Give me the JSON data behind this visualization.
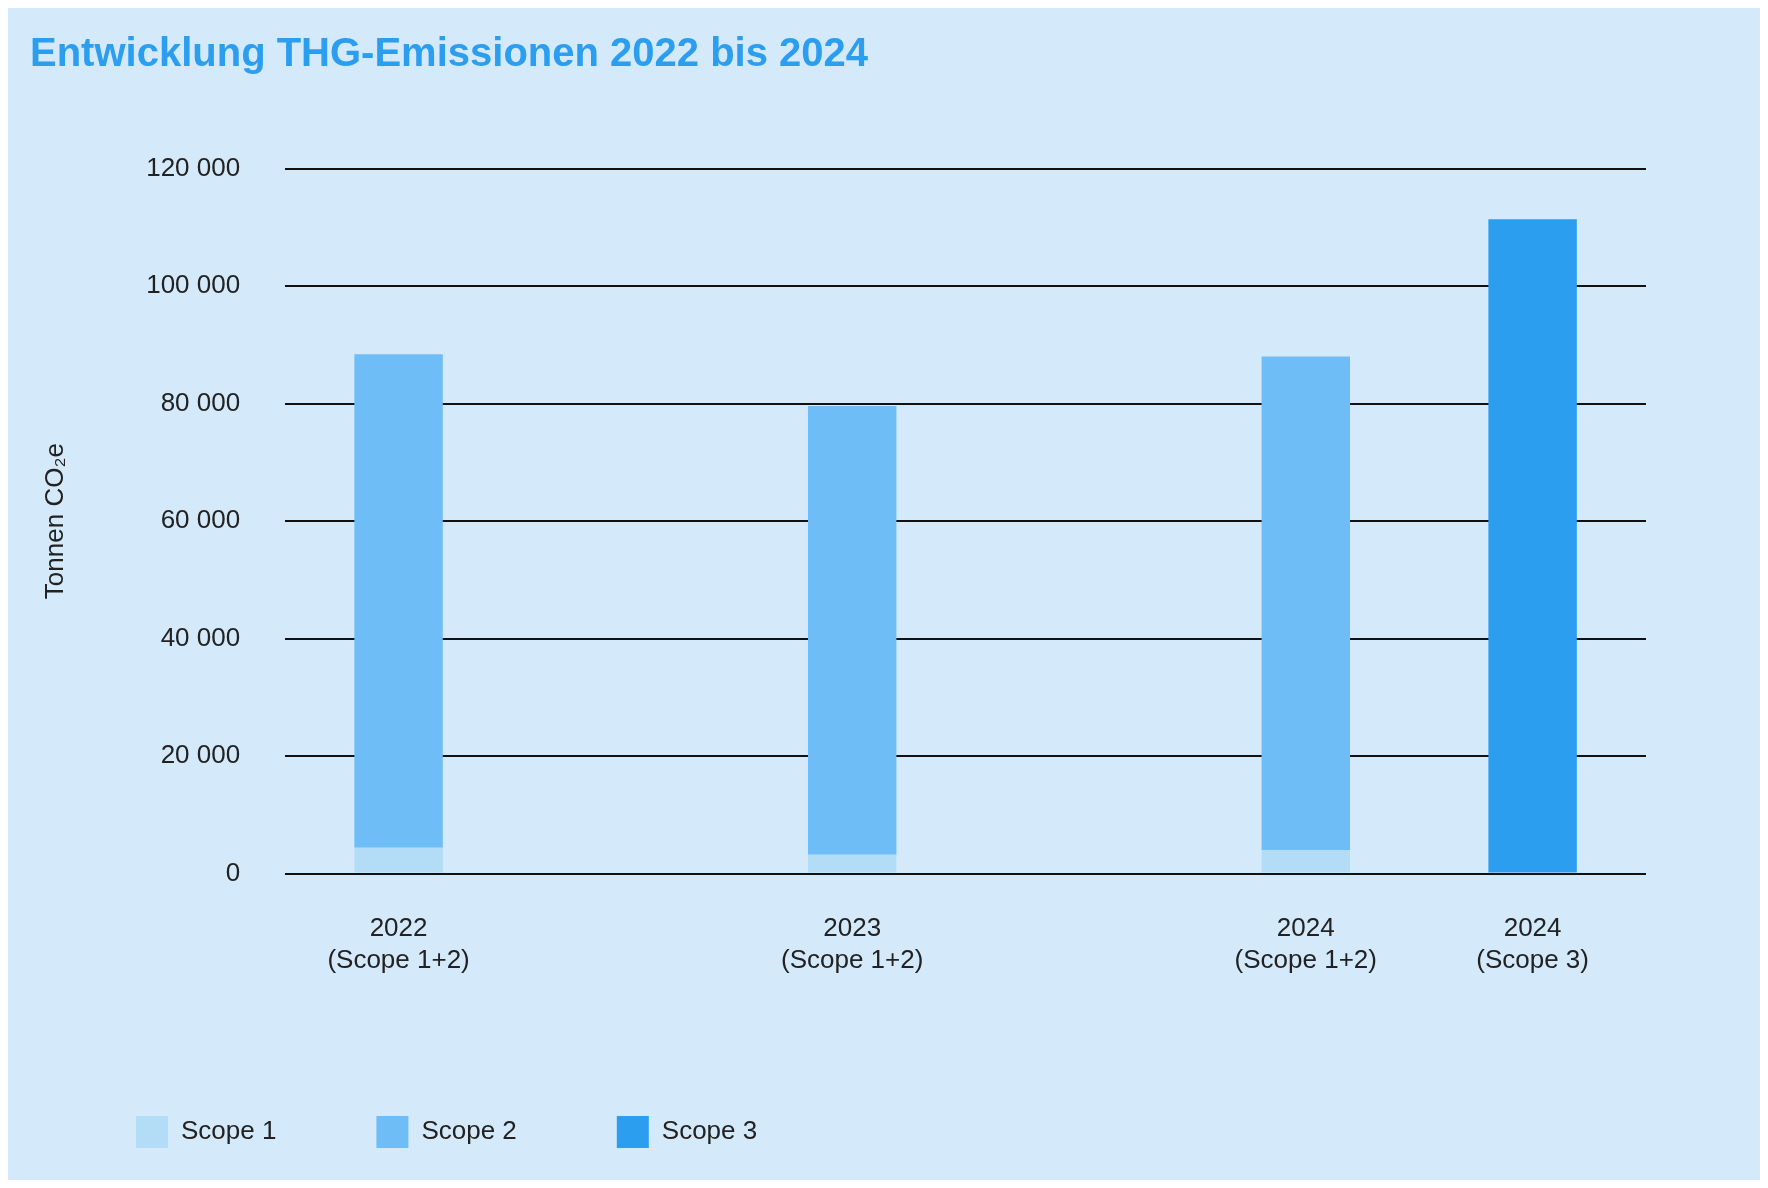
{
  "chart_data": {
    "type": "bar",
    "title": "Entwicklung THG-Emissionen 2022 bis 2024",
    "ylabel": "Tonnen CO₂e",
    "categories": [
      "2022\n(Scope 1+2)",
      null,
      "2023\n(Scope 1+2)",
      null,
      "2024\n(Scope 1+2)",
      "2024\n(Scope 3)"
    ],
    "stacked": true,
    "series": [
      {
        "name": "Scope 1",
        "color": "#b3dcf7",
        "values": [
          4400,
          null,
          3200,
          null,
          4000,
          null
        ]
      },
      {
        "name": "Scope 2",
        "color": "#6fbdf7",
        "values": [
          84000,
          null,
          76400,
          null,
          84000,
          null
        ]
      },
      {
        "name": "Scope 3",
        "color": "#2b9ef0",
        "values": [
          null,
          null,
          null,
          null,
          null,
          111400
        ]
      }
    ],
    "ylim": [
      0,
      120000
    ],
    "yticks": [
      {
        "value": 0,
        "label": "0"
      },
      {
        "value": 20000,
        "label": "20 000"
      },
      {
        "value": 40000,
        "label": "40 000"
      },
      {
        "value": 60000,
        "label": "60 000"
      },
      {
        "value": 80000,
        "label": "80 000"
      },
      {
        "value": 100000,
        "label": "100 000"
      },
      {
        "value": 120000,
        "label": "120 000"
      }
    ],
    "grid": "y",
    "legend": "bottom"
  }
}
